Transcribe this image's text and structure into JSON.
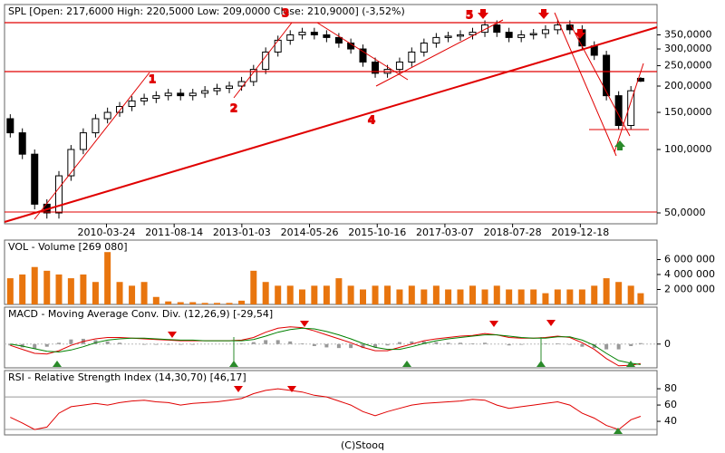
{
  "chart_data": [
    {
      "type": "candlestick",
      "title": "SPL [Open: 217,6000  High: 220,5000  Low: 209,0000  Close: 210,9000] (-3,52%)",
      "x": [
        "2008-04-01",
        "2008-07-01",
        "2008-10-01",
        "2009-01-01",
        "2009-04-01",
        "2009-07-01",
        "2009-10-01",
        "2010-01-01",
        "2010-04-01",
        "2010-07-01",
        "2010-10-01",
        "2011-01-01",
        "2011-04-01",
        "2011-07-01",
        "2011-10-01",
        "2012-01-01",
        "2012-04-01",
        "2012-07-01",
        "2012-10-01",
        "2013-01-01",
        "2013-04-01",
        "2013-07-01",
        "2013-10-01",
        "2014-01-01",
        "2014-04-01",
        "2014-07-01",
        "2014-10-01",
        "2015-01-01",
        "2015-04-01",
        "2015-07-01",
        "2015-10-01",
        "2016-01-01",
        "2016-04-01",
        "2016-07-01",
        "2016-10-01",
        "2017-01-01",
        "2017-04-01",
        "2017-07-01",
        "2017-10-01",
        "2018-01-01",
        "2018-04-01",
        "2018-07-01",
        "2018-10-01",
        "2019-01-01",
        "2019-04-01",
        "2019-07-01",
        "2019-10-01",
        "2020-01-01",
        "2020-04-01",
        "2020-07-01",
        "2020-10-01",
        "2021-01-01",
        "2021-03-15"
      ],
      "open": [
        140,
        120,
        95,
        55,
        50,
        75,
        100,
        120,
        140,
        150,
        160,
        170,
        175,
        180,
        185,
        180,
        185,
        190,
        195,
        200,
        210,
        240,
        290,
        330,
        350,
        360,
        350,
        340,
        320,
        300,
        260,
        230,
        240,
        260,
        290,
        320,
        340,
        345,
        350,
        360,
        390,
        360,
        340,
        350,
        355,
        370,
        390,
        370,
        310,
        280,
        180,
        130,
        217.6
      ],
      "high": [
        147,
        126,
        100,
        58,
        79,
        105,
        126,
        147,
        158,
        168,
        179,
        184,
        189,
        194,
        194,
        194,
        200,
        205,
        210,
        221,
        252,
        305,
        347,
        368,
        378,
        378,
        368,
        357,
        336,
        315,
        273,
        252,
        273,
        305,
        336,
        357,
        362,
        368,
        378,
        410,
        410,
        378,
        368,
        373,
        389,
        410,
        410,
        389,
        326,
        294,
        189,
        200,
        220.5
      ],
      "low": [
        114,
        90,
        52,
        47,
        47,
        71,
        95,
        114,
        133,
        143,
        152,
        162,
        166,
        171,
        171,
        171,
        176,
        181,
        185,
        190,
        200,
        228,
        276,
        314,
        333,
        333,
        323,
        304,
        285,
        247,
        219,
        219,
        228,
        247,
        276,
        304,
        323,
        328,
        333,
        342,
        342,
        323,
        323,
        333,
        337,
        352,
        352,
        295,
        266,
        171,
        124,
        124,
        209
      ],
      "close": [
        120,
        95,
        55,
        50,
        75,
        100,
        120,
        140,
        150,
        160,
        170,
        175,
        180,
        185,
        180,
        185,
        190,
        195,
        200,
        210,
        240,
        290,
        330,
        350,
        360,
        350,
        340,
        320,
        300,
        260,
        230,
        240,
        260,
        290,
        320,
        340,
        345,
        350,
        360,
        390,
        360,
        340,
        350,
        355,
        370,
        390,
        370,
        310,
        280,
        180,
        130,
        190,
        210.9
      ],
      "xlim": [
        "2008-02-18",
        "2021-07-16"
      ],
      "xticks": [
        "2010-03-24",
        "2011-08-14",
        "2013-01-03",
        "2014-05-26",
        "2015-10-16",
        "2017-03-07",
        "2018-07-28",
        "2019-12-18"
      ],
      "ylim": [
        44.4,
        487.5
      ],
      "log": true,
      "yticks": [
        {
          "value": 350,
          "label": "350,0000"
        },
        {
          "value": 300,
          "label": "300,0000"
        },
        {
          "value": 250,
          "label": "250,0000"
        },
        {
          "value": 200,
          "label": "200,0000"
        },
        {
          "value": 150,
          "label": "150,0000"
        },
        {
          "value": 100,
          "label": "100,0000"
        },
        {
          "value": 50,
          "label": "50,0000"
        }
      ],
      "annotations": [
        "1",
        "2",
        "3",
        "4",
        "5"
      ]
    },
    {
      "type": "bar",
      "title": "VOL - Volume [269 080]",
      "color": "#e8750e",
      "values": [
        3500000,
        4000000,
        5000000,
        4500000,
        4000000,
        3500000,
        4000000,
        3000000,
        7000000,
        3000000,
        2500000,
        3000000,
        1000000,
        400000,
        300000,
        300000,
        200000,
        200000,
        200000,
        500000,
        4500000,
        3000000,
        2500000,
        2500000,
        2000000,
        2500000,
        2500000,
        3500000,
        2500000,
        2000000,
        2500000,
        2500000,
        2000000,
        2500000,
        2000000,
        2500000,
        2000000,
        2000000,
        2500000,
        2000000,
        2500000,
        2000000,
        2000000,
        2000000,
        1500000,
        2000000,
        2000000,
        2000000,
        2500000,
        3500000,
        3000000,
        2500000,
        1500000
      ],
      "ylim": [
        0,
        8600000
      ],
      "yticks": [
        {
          "value": 2000000,
          "label": "2 000 000"
        },
        {
          "value": 4000000,
          "label": "4 000 000"
        },
        {
          "value": 6000000,
          "label": "6 000 000"
        }
      ]
    },
    {
      "type": "line",
      "title": "MACD - Moving Average Conv. Div. (12,26,9) [-29,54]",
      "series": [
        {
          "color": "#e00000",
          "values": [
            -2,
            -8,
            -14,
            -15,
            -10,
            -2,
            4,
            8,
            10,
            10,
            9,
            8,
            7,
            6,
            5,
            5,
            5,
            5,
            5,
            6,
            10,
            18,
            24,
            26,
            25,
            20,
            14,
            8,
            2,
            -5,
            -10,
            -10,
            -5,
            0,
            5,
            8,
            10,
            12,
            13,
            16,
            14,
            10,
            9,
            9,
            10,
            12,
            10,
            2,
            -8,
            -22,
            -33,
            -32,
            -29.54
          ]
        },
        {
          "color": "#008000",
          "values": [
            0,
            -3,
            -7,
            -11,
            -12,
            -9,
            -4,
            2,
            6,
            8,
            9,
            9,
            8,
            7,
            6,
            6,
            5,
            5,
            5,
            5,
            7,
            12,
            18,
            22,
            24,
            23,
            19,
            14,
            8,
            1,
            -5,
            -8,
            -8,
            -4,
            1,
            5,
            8,
            10,
            12,
            14,
            14,
            12,
            10,
            9,
            9,
            11,
            11,
            6,
            -2,
            -14,
            -25,
            -29,
            -31
          ]
        }
      ],
      "bars": {
        "color": "#999999",
        "values": [
          -2,
          -5,
          -7,
          -4,
          2,
          7,
          8,
          6,
          4,
          2,
          0,
          -1,
          -1,
          -1,
          -1,
          -1,
          0,
          0,
          0,
          1,
          3,
          6,
          6,
          4,
          1,
          -3,
          -5,
          -6,
          -6,
          -6,
          -5,
          -2,
          3,
          4,
          4,
          3,
          2,
          2,
          1,
          2,
          0,
          -2,
          -1,
          0,
          1,
          1,
          -1,
          -4,
          -6,
          -8,
          -8,
          -3,
          1.46
        ]
      },
      "ylim": [
        -36,
        56
      ],
      "yticks": [
        0
      ]
    },
    {
      "type": "line",
      "title": "RSI - Relative Strength Index (14,30,70) [46,17]",
      "color": "#e00000",
      "values": [
        45,
        38,
        30,
        33,
        50,
        58,
        60,
        62,
        60,
        63,
        65,
        66,
        64,
        63,
        60,
        62,
        63,
        64,
        66,
        68,
        74,
        78,
        80,
        78,
        76,
        72,
        70,
        65,
        60,
        52,
        47,
        52,
        56,
        60,
        62,
        63,
        64,
        65,
        67,
        66,
        60,
        56,
        58,
        60,
        62,
        64,
        60,
        50,
        44,
        35,
        30,
        42,
        46.17
      ],
      "levels": [
        30,
        70
      ],
      "ylim": [
        23.4,
        102.3
      ],
      "yticks": [
        40,
        60,
        80
      ]
    }
  ],
  "footer": "(C)Stooq"
}
